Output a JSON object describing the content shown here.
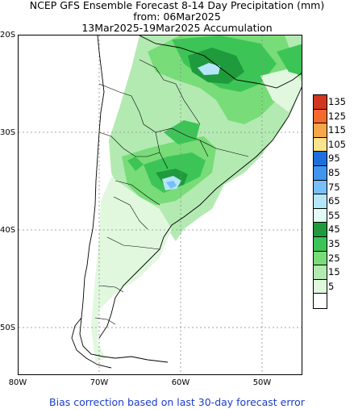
{
  "title": {
    "line1": "NCEP GFS Ensemble Forecast 8-14 Day Precipitation (mm)",
    "line2": "from: 06Mar2025",
    "line3": "13Mar2025-19Mar2025 Accumulation"
  },
  "axes": {
    "lat_labels": [
      "20S",
      "30S",
      "40S",
      "50S"
    ],
    "lon_labels": [
      "80W",
      "70W",
      "60W",
      "50W"
    ]
  },
  "legend": {
    "levels": [
      {
        "label": "135",
        "color": "#d2361e"
      },
      {
        "label": "125",
        "color": "#f36a2c"
      },
      {
        "label": "115",
        "color": "#f8a64a"
      },
      {
        "label": "105",
        "color": "#fbe58c"
      },
      {
        "label": "95",
        "color": "#1e6edc"
      },
      {
        "label": "85",
        "color": "#3f96f0"
      },
      {
        "label": "75",
        "color": "#78befa"
      },
      {
        "label": "65",
        "color": "#b4e6f8"
      },
      {
        "label": "55",
        "color": "#e3faf5"
      },
      {
        "label": "45",
        "color": "#1f9a3c"
      },
      {
        "label": "35",
        "color": "#3cc556"
      },
      {
        "label": "25",
        "color": "#78dc78"
      },
      {
        "label": "15",
        "color": "#b3eab2"
      },
      {
        "label": "5",
        "color": "#e1f8df"
      },
      {
        "label": "",
        "color": "#ffffff"
      }
    ]
  },
  "footer": "Bias correction based on last 30-day forecast error"
}
